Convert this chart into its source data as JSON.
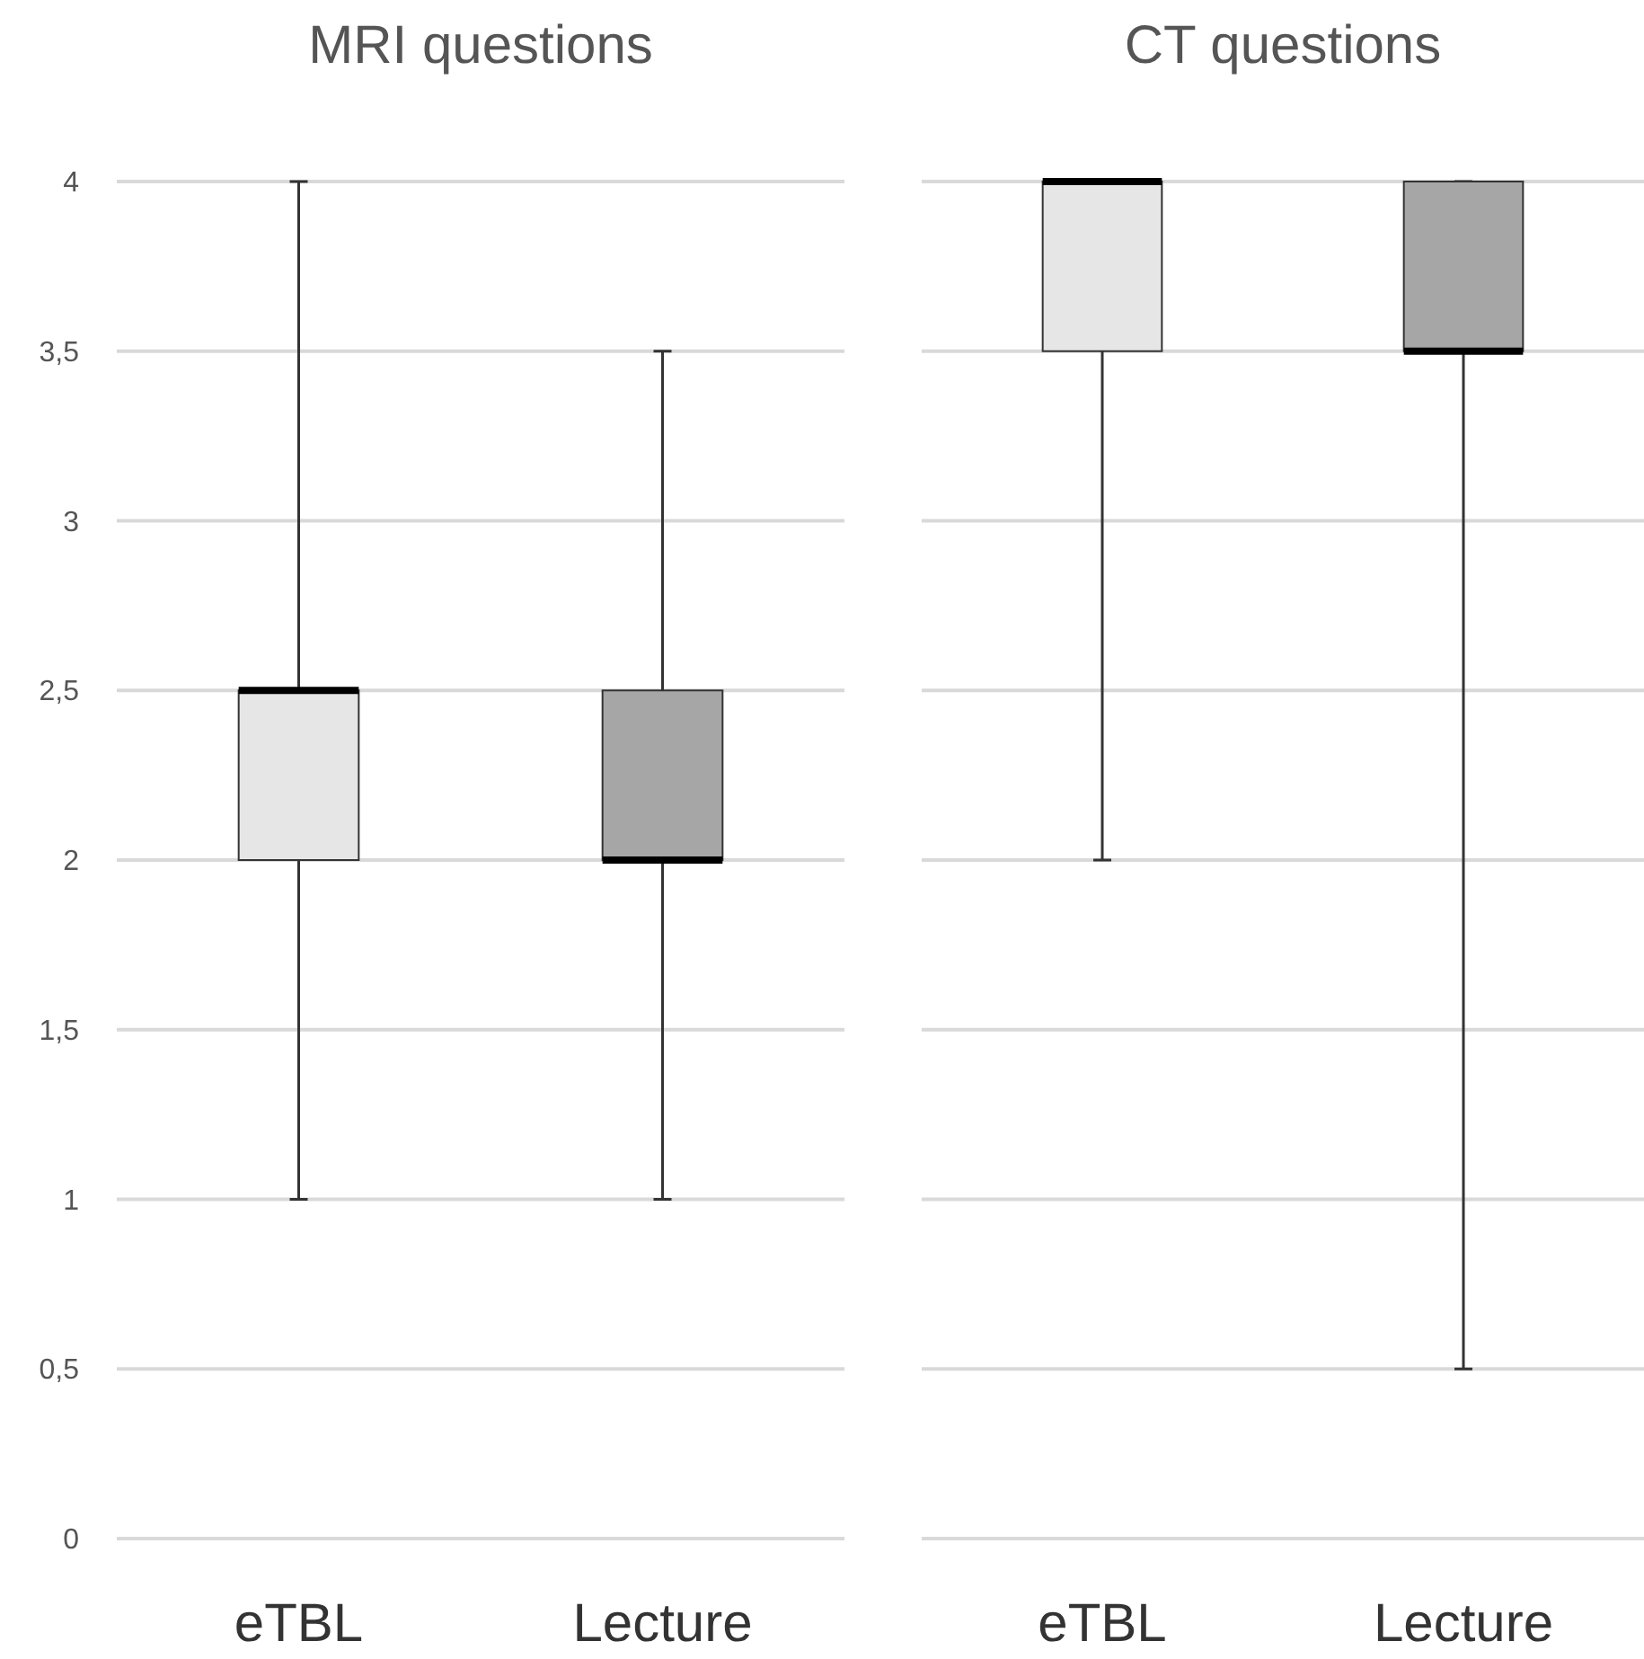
{
  "chart_data": [
    {
      "type": "box",
      "title": "MRI questions",
      "categories": [
        "eTBL",
        "Lecture"
      ],
      "colors": [
        "#e6e6e6",
        "#a6a6a6"
      ],
      "boxes": [
        {
          "low": 1,
          "q1": 2,
          "median": 2.5,
          "q3": 2.5,
          "high": 4
        },
        {
          "low": 1,
          "q1": 2,
          "median": 2,
          "q3": 2.5,
          "high": 3.5
        }
      ],
      "ylim": [
        0,
        4
      ],
      "yticks": [
        0,
        {
          "value": 0.5,
          "label": "0,5"
        },
        1,
        {
          "value": 1.5,
          "label": "1,5"
        },
        2,
        {
          "value": 2.5,
          "label": "2,5"
        },
        3,
        {
          "value": 3.5,
          "label": "3,5"
        },
        4
      ],
      "grid": "y"
    },
    {
      "type": "box",
      "title": "CT questions",
      "categories": [
        "eTBL",
        "Lecture"
      ],
      "colors": [
        "#e6e6e6",
        "#a6a6a6"
      ],
      "boxes": [
        {
          "low": 2,
          "q1": 3.5,
          "median": 4,
          "q3": 4,
          "high": 4
        },
        {
          "low": 0.5,
          "q1": 3.5,
          "median": 3.5,
          "q3": 4,
          "high": 4
        }
      ],
      "ylim": [
        0,
        4
      ],
      "yticks": [
        {
          "value": 0,
          "label": null
        },
        {
          "value": 0.5,
          "label": null
        },
        {
          "value": 1,
          "label": null
        },
        {
          "value": 1.5,
          "label": null
        },
        {
          "value": 2,
          "label": null
        },
        {
          "value": 2.5,
          "label": null
        },
        {
          "value": 3,
          "label": null
        },
        {
          "value": 3.5,
          "label": null
        },
        {
          "value": 4,
          "label": null
        }
      ],
      "grid": "y",
      "tick_labels": "x"
    }
  ]
}
